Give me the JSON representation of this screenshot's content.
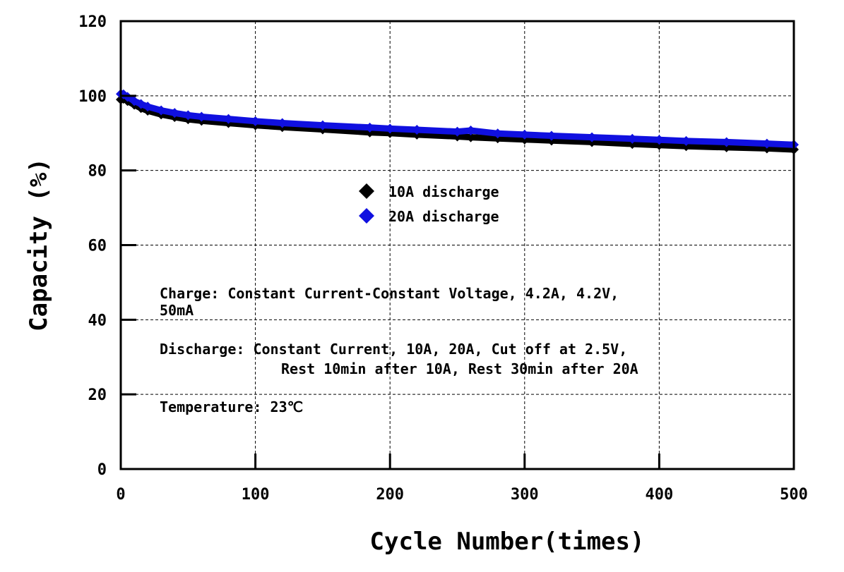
{
  "chart_data": {
    "type": "scatter",
    "title": "",
    "xlabel": "Cycle Number(times)",
    "ylabel": "Capacity (%)",
    "xlim": [
      0,
      500
    ],
    "ylim": [
      0,
      120
    ],
    "xticks": [
      0,
      100,
      200,
      300,
      400,
      500
    ],
    "yticks": [
      0,
      20,
      40,
      60,
      80,
      100,
      120
    ],
    "grid": true,
    "legend_position": "center",
    "series": [
      {
        "name": "10A discharge",
        "color": "#000000",
        "marker": "diamond",
        "x": [
          0,
          2,
          5,
          10,
          15,
          20,
          30,
          40,
          50,
          60,
          80,
          100,
          120,
          150,
          185,
          200,
          220,
          250,
          260,
          280,
          300,
          320,
          350,
          380,
          400,
          420,
          450,
          480,
          500
        ],
        "y": [
          99.0,
          99.2,
          98.6,
          97.6,
          96.7,
          96.0,
          95.0,
          94.3,
          93.7,
          93.3,
          92.7,
          92.1,
          91.6,
          91.0,
          90.2,
          90.0,
          89.6,
          89.1,
          88.9,
          88.6,
          88.3,
          88.0,
          87.6,
          87.1,
          86.8,
          86.5,
          86.2,
          85.9,
          85.6
        ]
      },
      {
        "name": "20A discharge",
        "color": "#1010e0",
        "marker": "diamond",
        "x": [
          0,
          2,
          5,
          10,
          15,
          20,
          30,
          40,
          50,
          60,
          80,
          100,
          120,
          150,
          185,
          200,
          220,
          250,
          260,
          280,
          300,
          320,
          350,
          380,
          400,
          420,
          450,
          480,
          500
        ],
        "y": [
          100.5,
          100.4,
          99.7,
          98.6,
          97.8,
          97.1,
          96.1,
          95.4,
          94.8,
          94.4,
          93.8,
          93.2,
          92.7,
          92.1,
          91.5,
          91.2,
          90.9,
          90.4,
          90.7,
          89.9,
          89.6,
          89.3,
          88.9,
          88.5,
          88.2,
          87.9,
          87.6,
          87.2,
          86.9
        ]
      }
    ],
    "annotations": {
      "charge_line1": "Charge: Constant Current-Constant Voltage, 4.2A, 4.2V,",
      "charge_line2": "50mA",
      "discharge_line1": "Discharge: Constant Current, 10A, 20A, Cut off at 2.5V,",
      "discharge_line2": "Rest 10min after 10A, Rest 30min after 20A",
      "temperature": "Temperature: 23℃"
    }
  }
}
